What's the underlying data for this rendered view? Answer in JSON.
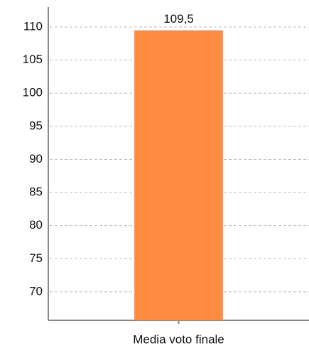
{
  "chart_data": {
    "type": "bar",
    "categories": [
      "Media voto finale"
    ],
    "values": [
      109.5
    ],
    "value_labels": [
      "109,5"
    ],
    "color": "#ff8c42",
    "ylim": [
      65.7,
      113
    ],
    "yticks": [
      70,
      75,
      80,
      85,
      90,
      95,
      100,
      105,
      110
    ],
    "grid": true
  }
}
